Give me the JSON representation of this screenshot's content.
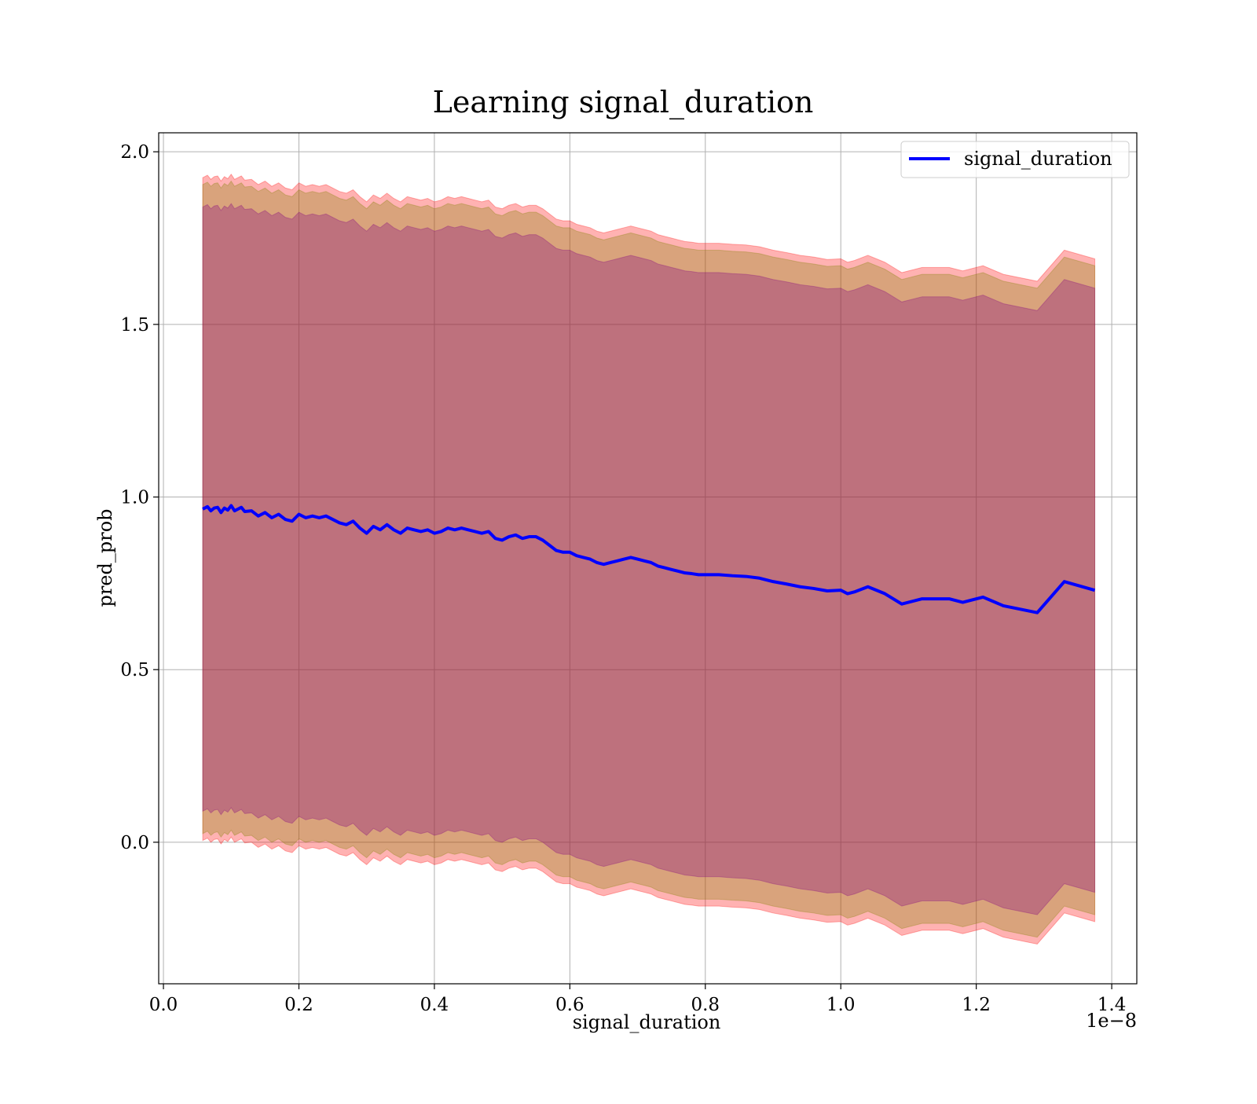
{
  "chart_data": {
    "type": "line",
    "title": "Learning signal_duration",
    "xlabel": "signal_duration",
    "ylabel": "pred_prob",
    "x_offset_label": "1e−8",
    "xlim": [
      -0.007,
      1.437
    ],
    "ylim": [
      -0.41,
      2.055
    ],
    "x_ticks": [
      0.0,
      0.2,
      0.4,
      0.6,
      0.8,
      1.0,
      1.2,
      1.4
    ],
    "x_tick_labels": [
      "0.0",
      "0.2",
      "0.4",
      "0.6",
      "0.8",
      "1.0",
      "1.2",
      "1.4"
    ],
    "y_ticks": [
      0.0,
      0.5,
      1.0,
      1.5,
      2.0
    ],
    "y_tick_labels": [
      "0.0",
      "0.5",
      "1.0",
      "1.5",
      "2.0"
    ],
    "grid": true,
    "legend": {
      "position": "top-right",
      "entries": [
        "signal_duration"
      ]
    },
    "colors": {
      "line": "#0000ff",
      "band_outer": "#ff0000",
      "band_middle": "#808000",
      "band_inner": "#800080",
      "grid": "#b0b0b0"
    },
    "series": [
      {
        "name": "signal_duration",
        "x": [
          0.058,
          0.065,
          0.07,
          0.075,
          0.08,
          0.085,
          0.09,
          0.095,
          0.1,
          0.105,
          0.11,
          0.115,
          0.12,
          0.13,
          0.14,
          0.15,
          0.16,
          0.17,
          0.18,
          0.19,
          0.2,
          0.21,
          0.22,
          0.23,
          0.24,
          0.25,
          0.26,
          0.27,
          0.28,
          0.29,
          0.3,
          0.31,
          0.32,
          0.33,
          0.34,
          0.35,
          0.36,
          0.37,
          0.38,
          0.39,
          0.4,
          0.41,
          0.42,
          0.43,
          0.44,
          0.45,
          0.46,
          0.47,
          0.48,
          0.49,
          0.5,
          0.51,
          0.52,
          0.53,
          0.54,
          0.55,
          0.56,
          0.57,
          0.58,
          0.59,
          0.6,
          0.61,
          0.62,
          0.63,
          0.64,
          0.65,
          0.66,
          0.67,
          0.68,
          0.69,
          0.7,
          0.71,
          0.72,
          0.73,
          0.74,
          0.75,
          0.76,
          0.77,
          0.78,
          0.79,
          0.8,
          0.82,
          0.84,
          0.86,
          0.88,
          0.9,
          0.92,
          0.94,
          0.96,
          0.98,
          1.0,
          1.01,
          1.02,
          1.04,
          1.065,
          1.09,
          1.12,
          1.16,
          1.18,
          1.21,
          1.24,
          1.29,
          1.33,
          1.375
        ],
        "y": [
          0.965,
          0.972,
          0.96,
          0.968,
          0.97,
          0.955,
          0.968,
          0.962,
          0.975,
          0.96,
          0.965,
          0.97,
          0.958,
          0.96,
          0.945,
          0.955,
          0.94,
          0.95,
          0.935,
          0.93,
          0.95,
          0.94,
          0.945,
          0.94,
          0.945,
          0.935,
          0.925,
          0.92,
          0.93,
          0.91,
          0.895,
          0.915,
          0.905,
          0.92,
          0.905,
          0.895,
          0.91,
          0.905,
          0.9,
          0.905,
          0.895,
          0.9,
          0.91,
          0.905,
          0.91,
          0.905,
          0.9,
          0.895,
          0.9,
          0.88,
          0.875,
          0.885,
          0.89,
          0.88,
          0.885,
          0.885,
          0.875,
          0.86,
          0.845,
          0.84,
          0.84,
          0.83,
          0.825,
          0.82,
          0.81,
          0.805,
          0.81,
          0.815,
          0.82,
          0.825,
          0.82,
          0.815,
          0.81,
          0.8,
          0.795,
          0.79,
          0.785,
          0.78,
          0.778,
          0.775,
          0.775,
          0.775,
          0.772,
          0.77,
          0.765,
          0.755,
          0.748,
          0.74,
          0.735,
          0.728,
          0.73,
          0.72,
          0.725,
          0.74,
          0.72,
          0.69,
          0.705,
          0.705,
          0.695,
          0.71,
          0.685,
          0.665,
          0.755,
          0.73
        ],
        "bands": [
          {
            "half_width": 0.96,
            "color": "#ff0000",
            "opacity": 0.3
          },
          {
            "half_width": 0.94,
            "color": "#808000",
            "opacity": 0.3
          },
          {
            "half_width": 0.875,
            "color": "#800080",
            "opacity": 0.3
          }
        ]
      }
    ]
  }
}
